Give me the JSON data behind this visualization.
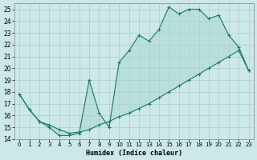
{
  "xlabel": "Humidex (Indice chaleur)",
  "background_color": "#cce8e8",
  "line_color": "#1a7a6e",
  "fill_color": "#a8d8d0",
  "xlim": [
    -0.5,
    23.5
  ],
  "ylim": [
    14,
    25.5
  ],
  "xticks": [
    0,
    1,
    2,
    3,
    4,
    5,
    6,
    7,
    8,
    9,
    10,
    11,
    12,
    13,
    14,
    15,
    16,
    17,
    18,
    19,
    20,
    21,
    22,
    23
  ],
  "yticks": [
    14,
    15,
    16,
    17,
    18,
    19,
    20,
    21,
    22,
    23,
    24,
    25
  ],
  "upper_x": [
    0,
    1,
    2,
    3,
    4,
    5,
    6,
    7,
    8,
    9,
    10,
    11,
    12,
    13,
    14,
    15,
    16,
    17,
    18,
    19,
    20,
    21,
    22,
    23
  ],
  "upper_y": [
    17.8,
    16.5,
    15.5,
    15.0,
    14.3,
    14.3,
    14.5,
    19.0,
    16.2,
    15.0,
    20.5,
    21.5,
    22.8,
    22.3,
    23.3,
    25.2,
    24.6,
    25.0,
    25.0,
    24.2,
    24.5,
    22.8,
    21.8,
    19.8
  ],
  "lower_x": [
    0,
    1,
    2,
    3,
    4,
    5,
    6,
    7,
    8,
    9,
    10,
    11,
    12,
    13,
    14,
    15,
    16,
    17,
    18,
    19,
    20,
    21,
    22,
    23
  ],
  "lower_y": [
    17.8,
    16.5,
    15.5,
    15.2,
    14.8,
    14.5,
    14.6,
    14.8,
    15.2,
    15.5,
    15.9,
    16.2,
    16.6,
    17.0,
    17.5,
    18.0,
    18.5,
    19.0,
    19.5,
    20.0,
    20.5,
    21.0,
    21.5,
    19.8
  ]
}
